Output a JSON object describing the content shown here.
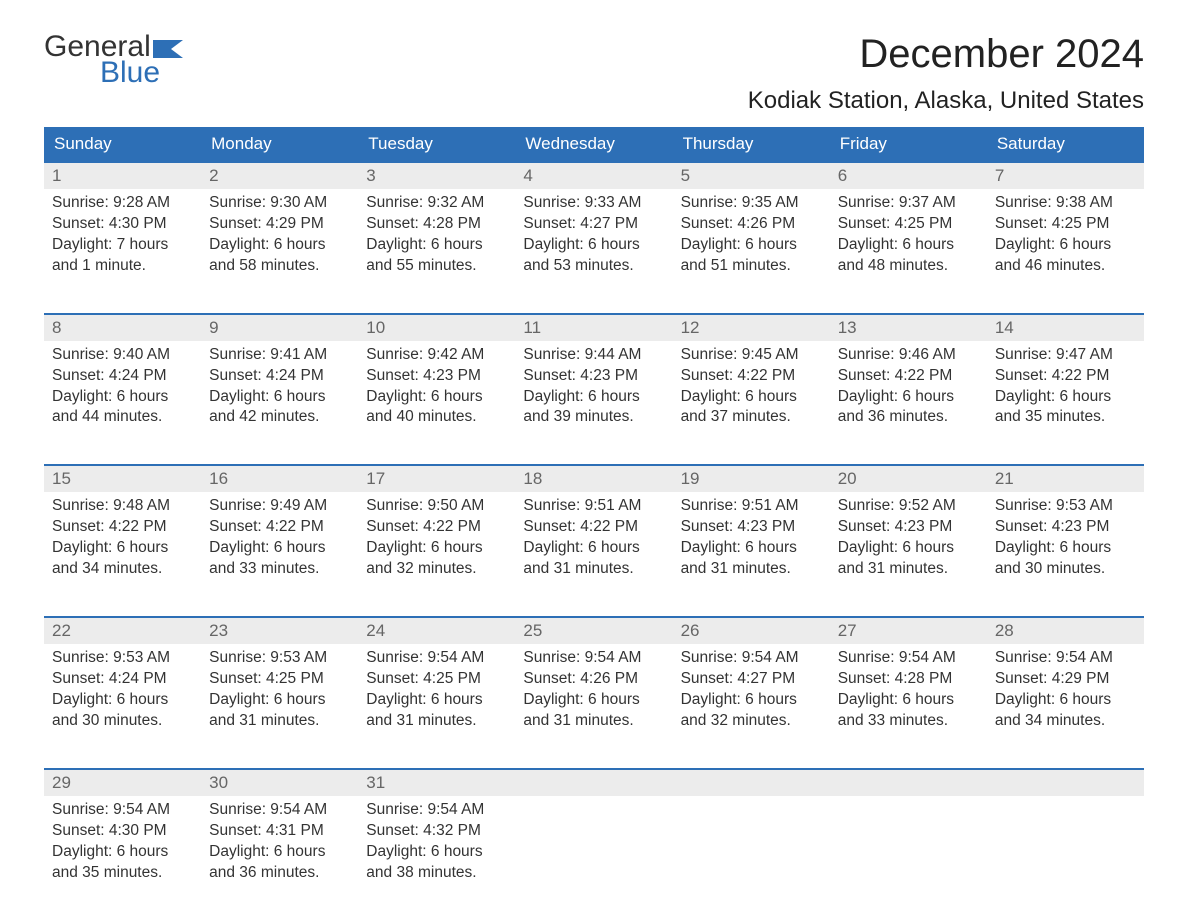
{
  "brand": {
    "general": "General",
    "blue": "Blue",
    "flag_color": "#2d6fb6"
  },
  "header": {
    "month_title": "December 2024",
    "location": "Kodiak Station, Alaska, United States"
  },
  "colors": {
    "header_bg": "#2d6fb6",
    "header_text": "#ffffff",
    "daynum_bg": "#ececec",
    "daynum_text": "#666666",
    "body_text": "#333333",
    "week_border": "#2d6fb6",
    "page_bg": "#ffffff"
  },
  "days_of_week": [
    "Sunday",
    "Monday",
    "Tuesday",
    "Wednesday",
    "Thursday",
    "Friday",
    "Saturday"
  ],
  "weeks": [
    [
      {
        "n": "1",
        "sunrise": "Sunrise: 9:28 AM",
        "sunset": "Sunset: 4:30 PM",
        "dl1": "Daylight: 7 hours",
        "dl2": "and 1 minute."
      },
      {
        "n": "2",
        "sunrise": "Sunrise: 9:30 AM",
        "sunset": "Sunset: 4:29 PM",
        "dl1": "Daylight: 6 hours",
        "dl2": "and 58 minutes."
      },
      {
        "n": "3",
        "sunrise": "Sunrise: 9:32 AM",
        "sunset": "Sunset: 4:28 PM",
        "dl1": "Daylight: 6 hours",
        "dl2": "and 55 minutes."
      },
      {
        "n": "4",
        "sunrise": "Sunrise: 9:33 AM",
        "sunset": "Sunset: 4:27 PM",
        "dl1": "Daylight: 6 hours",
        "dl2": "and 53 minutes."
      },
      {
        "n": "5",
        "sunrise": "Sunrise: 9:35 AM",
        "sunset": "Sunset: 4:26 PM",
        "dl1": "Daylight: 6 hours",
        "dl2": "and 51 minutes."
      },
      {
        "n": "6",
        "sunrise": "Sunrise: 9:37 AM",
        "sunset": "Sunset: 4:25 PM",
        "dl1": "Daylight: 6 hours",
        "dl2": "and 48 minutes."
      },
      {
        "n": "7",
        "sunrise": "Sunrise: 9:38 AM",
        "sunset": "Sunset: 4:25 PM",
        "dl1": "Daylight: 6 hours",
        "dl2": "and 46 minutes."
      }
    ],
    [
      {
        "n": "8",
        "sunrise": "Sunrise: 9:40 AM",
        "sunset": "Sunset: 4:24 PM",
        "dl1": "Daylight: 6 hours",
        "dl2": "and 44 minutes."
      },
      {
        "n": "9",
        "sunrise": "Sunrise: 9:41 AM",
        "sunset": "Sunset: 4:24 PM",
        "dl1": "Daylight: 6 hours",
        "dl2": "and 42 minutes."
      },
      {
        "n": "10",
        "sunrise": "Sunrise: 9:42 AM",
        "sunset": "Sunset: 4:23 PM",
        "dl1": "Daylight: 6 hours",
        "dl2": "and 40 minutes."
      },
      {
        "n": "11",
        "sunrise": "Sunrise: 9:44 AM",
        "sunset": "Sunset: 4:23 PM",
        "dl1": "Daylight: 6 hours",
        "dl2": "and 39 minutes."
      },
      {
        "n": "12",
        "sunrise": "Sunrise: 9:45 AM",
        "sunset": "Sunset: 4:22 PM",
        "dl1": "Daylight: 6 hours",
        "dl2": "and 37 minutes."
      },
      {
        "n": "13",
        "sunrise": "Sunrise: 9:46 AM",
        "sunset": "Sunset: 4:22 PM",
        "dl1": "Daylight: 6 hours",
        "dl2": "and 36 minutes."
      },
      {
        "n": "14",
        "sunrise": "Sunrise: 9:47 AM",
        "sunset": "Sunset: 4:22 PM",
        "dl1": "Daylight: 6 hours",
        "dl2": "and 35 minutes."
      }
    ],
    [
      {
        "n": "15",
        "sunrise": "Sunrise: 9:48 AM",
        "sunset": "Sunset: 4:22 PM",
        "dl1": "Daylight: 6 hours",
        "dl2": "and 34 minutes."
      },
      {
        "n": "16",
        "sunrise": "Sunrise: 9:49 AM",
        "sunset": "Sunset: 4:22 PM",
        "dl1": "Daylight: 6 hours",
        "dl2": "and 33 minutes."
      },
      {
        "n": "17",
        "sunrise": "Sunrise: 9:50 AM",
        "sunset": "Sunset: 4:22 PM",
        "dl1": "Daylight: 6 hours",
        "dl2": "and 32 minutes."
      },
      {
        "n": "18",
        "sunrise": "Sunrise: 9:51 AM",
        "sunset": "Sunset: 4:22 PM",
        "dl1": "Daylight: 6 hours",
        "dl2": "and 31 minutes."
      },
      {
        "n": "19",
        "sunrise": "Sunrise: 9:51 AM",
        "sunset": "Sunset: 4:23 PM",
        "dl1": "Daylight: 6 hours",
        "dl2": "and 31 minutes."
      },
      {
        "n": "20",
        "sunrise": "Sunrise: 9:52 AM",
        "sunset": "Sunset: 4:23 PM",
        "dl1": "Daylight: 6 hours",
        "dl2": "and 31 minutes."
      },
      {
        "n": "21",
        "sunrise": "Sunrise: 9:53 AM",
        "sunset": "Sunset: 4:23 PM",
        "dl1": "Daylight: 6 hours",
        "dl2": "and 30 minutes."
      }
    ],
    [
      {
        "n": "22",
        "sunrise": "Sunrise: 9:53 AM",
        "sunset": "Sunset: 4:24 PM",
        "dl1": "Daylight: 6 hours",
        "dl2": "and 30 minutes."
      },
      {
        "n": "23",
        "sunrise": "Sunrise: 9:53 AM",
        "sunset": "Sunset: 4:25 PM",
        "dl1": "Daylight: 6 hours",
        "dl2": "and 31 minutes."
      },
      {
        "n": "24",
        "sunrise": "Sunrise: 9:54 AM",
        "sunset": "Sunset: 4:25 PM",
        "dl1": "Daylight: 6 hours",
        "dl2": "and 31 minutes."
      },
      {
        "n": "25",
        "sunrise": "Sunrise: 9:54 AM",
        "sunset": "Sunset: 4:26 PM",
        "dl1": "Daylight: 6 hours",
        "dl2": "and 31 minutes."
      },
      {
        "n": "26",
        "sunrise": "Sunrise: 9:54 AM",
        "sunset": "Sunset: 4:27 PM",
        "dl1": "Daylight: 6 hours",
        "dl2": "and 32 minutes."
      },
      {
        "n": "27",
        "sunrise": "Sunrise: 9:54 AM",
        "sunset": "Sunset: 4:28 PM",
        "dl1": "Daylight: 6 hours",
        "dl2": "and 33 minutes."
      },
      {
        "n": "28",
        "sunrise": "Sunrise: 9:54 AM",
        "sunset": "Sunset: 4:29 PM",
        "dl1": "Daylight: 6 hours",
        "dl2": "and 34 minutes."
      }
    ],
    [
      {
        "n": "29",
        "sunrise": "Sunrise: 9:54 AM",
        "sunset": "Sunset: 4:30 PM",
        "dl1": "Daylight: 6 hours",
        "dl2": "and 35 minutes."
      },
      {
        "n": "30",
        "sunrise": "Sunrise: 9:54 AM",
        "sunset": "Sunset: 4:31 PM",
        "dl1": "Daylight: 6 hours",
        "dl2": "and 36 minutes."
      },
      {
        "n": "31",
        "sunrise": "Sunrise: 9:54 AM",
        "sunset": "Sunset: 4:32 PM",
        "dl1": "Daylight: 6 hours",
        "dl2": "and 38 minutes."
      },
      {
        "empty": true
      },
      {
        "empty": true
      },
      {
        "empty": true
      },
      {
        "empty": true
      }
    ]
  ]
}
